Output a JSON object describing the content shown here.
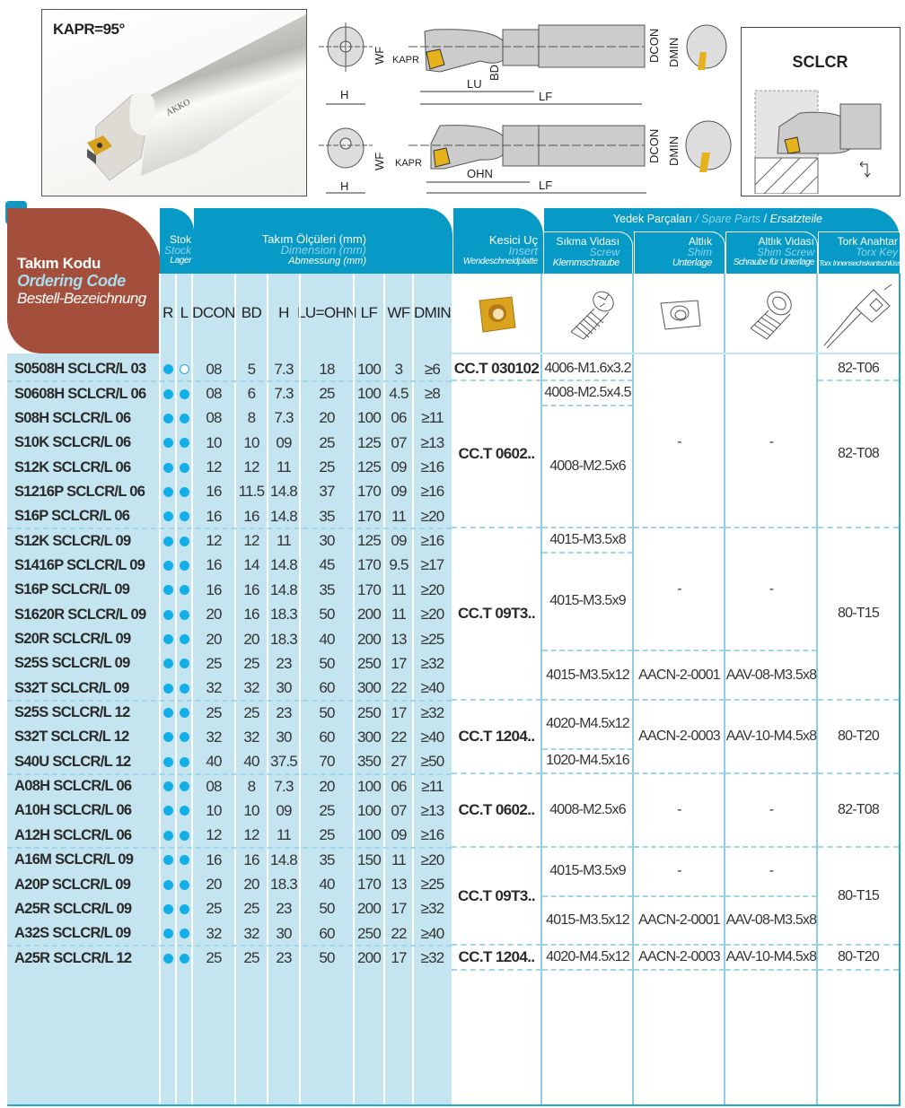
{
  "photo": {
    "kapr_label": "KAPR=95°",
    "brand": "AKKO"
  },
  "diagram": {
    "labels": {
      "wf": "WF",
      "kapr": "KAPR",
      "bd": "BD",
      "dcon": "DCON",
      "lu": "LU",
      "lf": "LF",
      "h": "H",
      "dmin": "DMIN",
      "ohn": "OHN"
    },
    "sclcr_title": "SCLCR"
  },
  "header": {
    "ordering": {
      "tr": "Takım Kodu",
      "en": "Ordering Code",
      "de": "Bestell-Bezeichnung"
    },
    "stock": {
      "tr": "Stok",
      "en": "Stock",
      "de": "Lager"
    },
    "dimension": {
      "tr": "Takım Ölçüleri (mm)",
      "en": "Dimension (mm)",
      "de": "Abmessung (mm)"
    },
    "insert": {
      "tr": "Kesici Uç",
      "en": "Insert",
      "de": "Wendeschneidplatte"
    },
    "spare": {
      "tr": "Yedek Parçaları",
      "sep": "/",
      "en": "Spare Parts",
      "de": "Ersatzteile"
    },
    "screw": {
      "tr": "Sıkma Vidası",
      "en": "Screw",
      "de": "Klemmschraube"
    },
    "shim": {
      "tr": "Altlık",
      "en": "Shim",
      "de": "Unterlage"
    },
    "shim_screw": {
      "tr": "Altlık Vidası",
      "en": "Shim Screw",
      "de": "Schraube für Unterlage"
    },
    "key": {
      "tr": "Tork Anahtar",
      "en": "Torx Key",
      "de": "Torx Innensechskantschlüssel"
    },
    "columns": [
      "R",
      "L",
      "DCON",
      "BD",
      "H",
      "LU=OHN",
      "LF",
      "WF",
      "DMIN"
    ],
    "icons": [
      "insert-image",
      "screw-icon",
      "shim-icon",
      "shim-screw-icon",
      "torx-key-icon"
    ]
  },
  "colors": {
    "header_blue": "#079ac6",
    "brown": "#a44f3b",
    "light_blue": "#c4e4ef",
    "stock_dot": "#14aee8"
  },
  "rows": [
    {
      "code": "S0508H SCLCR/L 03",
      "r": "filled",
      "l": "open",
      "dcon": "08",
      "bd": "5",
      "h": "7.3",
      "lu": "18",
      "lf": "100",
      "wf": "3",
      "dmin": "≥6"
    },
    {
      "code": "S0608H SCLCR/L 06",
      "r": "filled",
      "l": "filled",
      "dcon": "08",
      "bd": "6",
      "h": "7.3",
      "lu": "25",
      "lf": "100",
      "wf": "4.5",
      "dmin": "≥8"
    },
    {
      "code": "S08H SCLCR/L 06",
      "r": "filled",
      "l": "filled",
      "dcon": "08",
      "bd": "8",
      "h": "7.3",
      "lu": "20",
      "lf": "100",
      "wf": "06",
      "dmin": "≥11"
    },
    {
      "code": "S10K SCLCR/L 06",
      "r": "filled",
      "l": "filled",
      "dcon": "10",
      "bd": "10",
      "h": "09",
      "lu": "25",
      "lf": "125",
      "wf": "07",
      "dmin": "≥13"
    },
    {
      "code": "S12K SCLCR/L 06",
      "r": "filled",
      "l": "filled",
      "dcon": "12",
      "bd": "12",
      "h": "11",
      "lu": "25",
      "lf": "125",
      "wf": "09",
      "dmin": "≥16"
    },
    {
      "code": "S1216P SCLCR/L 06",
      "r": "filled",
      "l": "filled",
      "dcon": "16",
      "bd": "11.5",
      "h": "14.8",
      "lu": "37",
      "lf": "170",
      "wf": "09",
      "dmin": "≥16"
    },
    {
      "code": "S16P SCLCR/L 06",
      "r": "filled",
      "l": "filled",
      "dcon": "16",
      "bd": "16",
      "h": "14.8",
      "lu": "35",
      "lf": "170",
      "wf": "11",
      "dmin": "≥20"
    },
    {
      "code": "S12K SCLCR/L 09",
      "r": "filled",
      "l": "filled",
      "dcon": "12",
      "bd": "12",
      "h": "11",
      "lu": "30",
      "lf": "125",
      "wf": "09",
      "dmin": "≥16"
    },
    {
      "code": "S1416P SCLCR/L 09",
      "r": "filled",
      "l": "filled",
      "dcon": "16",
      "bd": "14",
      "h": "14.8",
      "lu": "45",
      "lf": "170",
      "wf": "9.5",
      "dmin": "≥17"
    },
    {
      "code": "S16P SCLCR/L 09",
      "r": "filled",
      "l": "filled",
      "dcon": "16",
      "bd": "16",
      "h": "14.8",
      "lu": "35",
      "lf": "170",
      "wf": "11",
      "dmin": "≥20"
    },
    {
      "code": "S1620R SCLCR/L 09",
      "r": "filled",
      "l": "filled",
      "dcon": "20",
      "bd": "16",
      "h": "18.3",
      "lu": "50",
      "lf": "200",
      "wf": "11",
      "dmin": "≥20"
    },
    {
      "code": "S20R SCLCR/L 09",
      "r": "filled",
      "l": "filled",
      "dcon": "20",
      "bd": "20",
      "h": "18.3",
      "lu": "40",
      "lf": "200",
      "wf": "13",
      "dmin": "≥25"
    },
    {
      "code": "S25S SCLCR/L 09",
      "r": "filled",
      "l": "filled",
      "dcon": "25",
      "bd": "25",
      "h": "23",
      "lu": "50",
      "lf": "250",
      "wf": "17",
      "dmin": "≥32"
    },
    {
      "code": "S32T SCLCR/L 09",
      "r": "filled",
      "l": "filled",
      "dcon": "32",
      "bd": "32",
      "h": "30",
      "lu": "60",
      "lf": "300",
      "wf": "22",
      "dmin": "≥40"
    },
    {
      "code": "S25S SCLCR/L 12",
      "r": "filled",
      "l": "filled",
      "dcon": "25",
      "bd": "25",
      "h": "23",
      "lu": "50",
      "lf": "250",
      "wf": "17",
      "dmin": "≥32"
    },
    {
      "code": "S32T SCLCR/L 12",
      "r": "filled",
      "l": "filled",
      "dcon": "32",
      "bd": "32",
      "h": "30",
      "lu": "60",
      "lf": "300",
      "wf": "22",
      "dmin": "≥40"
    },
    {
      "code": "S40U SCLCR/L 12",
      "r": "filled",
      "l": "filled",
      "dcon": "40",
      "bd": "40",
      "h": "37.5",
      "lu": "70",
      "lf": "350",
      "wf": "27",
      "dmin": "≥50"
    },
    {
      "code": "A08H SCLCR/L 06",
      "r": "filled",
      "l": "filled",
      "dcon": "08",
      "bd": "8",
      "h": "7.3",
      "lu": "20",
      "lf": "100",
      "wf": "06",
      "dmin": "≥11"
    },
    {
      "code": "A10H SCLCR/L 06",
      "r": "filled",
      "l": "filled",
      "dcon": "10",
      "bd": "10",
      "h": "09",
      "lu": "25",
      "lf": "100",
      "wf": "07",
      "dmin": "≥13"
    },
    {
      "code": "A12H SCLCR/L 06",
      "r": "filled",
      "l": "filled",
      "dcon": "12",
      "bd": "12",
      "h": "11",
      "lu": "25",
      "lf": "100",
      "wf": "09",
      "dmin": "≥16"
    },
    {
      "code": "A16M SCLCR/L 09",
      "r": "filled",
      "l": "filled",
      "dcon": "16",
      "bd": "16",
      "h": "14.8",
      "lu": "35",
      "lf": "150",
      "wf": "11",
      "dmin": "≥20"
    },
    {
      "code": "A20P SCLCR/L 09",
      "r": "filled",
      "l": "filled",
      "dcon": "20",
      "bd": "20",
      "h": "18.3",
      "lu": "40",
      "lf": "170",
      "wf": "13",
      "dmin": "≥25"
    },
    {
      "code": "A25R SCLCR/L 09",
      "r": "filled",
      "l": "filled",
      "dcon": "25",
      "bd": "25",
      "h": "23",
      "lu": "50",
      "lf": "200",
      "wf": "17",
      "dmin": "≥32"
    },
    {
      "code": "A32S SCLCR/L 09",
      "r": "filled",
      "l": "filled",
      "dcon": "32",
      "bd": "32",
      "h": "30",
      "lu": "60",
      "lf": "250",
      "wf": "22",
      "dmin": "≥40"
    },
    {
      "code": "A25R SCLCR/L 12",
      "r": "filled",
      "l": "filled",
      "dcon": "25",
      "bd": "25",
      "h": "23",
      "lu": "50",
      "lf": "200",
      "wf": "17",
      "dmin": "≥32"
    }
  ],
  "spare_groups": {
    "insert": [
      {
        "row": 0,
        "span": 1,
        "text": "CC.T 030102"
      },
      {
        "row": 1,
        "span": 6,
        "text": "CC.T 0602.."
      },
      {
        "row": 7,
        "span": 7,
        "text": "CC.T 09T3.."
      },
      {
        "row": 14,
        "span": 3,
        "text": "CC.T 1204.."
      },
      {
        "row": 17,
        "span": 3,
        "text": "CC.T 0602.."
      },
      {
        "row": 20,
        "span": 4,
        "text": "CC.T 09T3.."
      },
      {
        "row": 24,
        "span": 1,
        "text": "CC.T 1204.."
      }
    ],
    "screw": [
      {
        "row": 0,
        "span": 1,
        "text": "4006-M1.6x3.2"
      },
      {
        "row": 1,
        "span": 1,
        "text": "4008-M2.5x4.5"
      },
      {
        "row": 2,
        "span": 5,
        "text": "4008-M2.5x6"
      },
      {
        "row": 7,
        "span": 1,
        "text": "4015-M3.5x8"
      },
      {
        "row": 8,
        "span": 4,
        "text": "4015-M3.5x9"
      },
      {
        "row": 12,
        "span": 2,
        "text": "4015-M3.5x12"
      },
      {
        "row": 14,
        "span": 2,
        "text": "4020-M4.5x12"
      },
      {
        "row": 16,
        "span": 1,
        "text": "1020-M4.5x16"
      },
      {
        "row": 17,
        "span": 3,
        "text": "4008-M2.5x6"
      },
      {
        "row": 20,
        "span": 2,
        "text": "4015-M3.5x9"
      },
      {
        "row": 22,
        "span": 2,
        "text": "4015-M3.5x12"
      },
      {
        "row": 24,
        "span": 1,
        "text": "4020-M4.5x12"
      }
    ],
    "shim": [
      {
        "row": 0,
        "span": 7,
        "text": "-"
      },
      {
        "row": 7,
        "span": 5,
        "text": "-"
      },
      {
        "row": 12,
        "span": 2,
        "text": "AACN-2-0001"
      },
      {
        "row": 14,
        "span": 3,
        "text": "AACN-2-0003"
      },
      {
        "row": 17,
        "span": 3,
        "text": "-"
      },
      {
        "row": 20,
        "span": 2,
        "text": "-"
      },
      {
        "row": 22,
        "span": 2,
        "text": "AACN-2-0001"
      },
      {
        "row": 24,
        "span": 1,
        "text": "AACN-2-0003"
      }
    ],
    "shim_screw": [
      {
        "row": 0,
        "span": 7,
        "text": "-"
      },
      {
        "row": 7,
        "span": 5,
        "text": "-"
      },
      {
        "row": 12,
        "span": 2,
        "text": "AAV-08-M3.5x8"
      },
      {
        "row": 14,
        "span": 3,
        "text": "AAV-10-M4.5x8"
      },
      {
        "row": 17,
        "span": 3,
        "text": "-"
      },
      {
        "row": 20,
        "span": 2,
        "text": "-"
      },
      {
        "row": 22,
        "span": 2,
        "text": "AAV-08-M3.5x8"
      },
      {
        "row": 24,
        "span": 1,
        "text": "AAV-10-M4.5x8"
      }
    ],
    "key": [
      {
        "row": 0,
        "span": 1,
        "text": "82-T06"
      },
      {
        "row": 1,
        "span": 6,
        "text": "82-T08"
      },
      {
        "row": 7,
        "span": 7,
        "text": "80-T15"
      },
      {
        "row": 14,
        "span": 3,
        "text": "80-T20"
      },
      {
        "row": 17,
        "span": 3,
        "text": "82-T08"
      },
      {
        "row": 20,
        "span": 4,
        "text": "80-T15"
      },
      {
        "row": 24,
        "span": 1,
        "text": "80-T20"
      }
    ]
  }
}
